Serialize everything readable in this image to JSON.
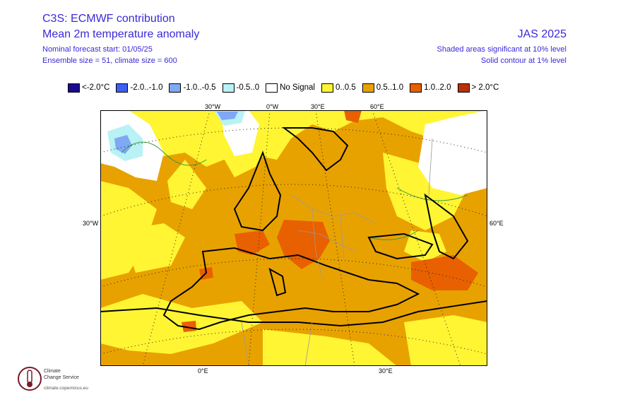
{
  "header": {
    "title": "C3S: ECMWF contribution",
    "subtitle": "Mean 2m temperature anomaly",
    "forecast_start": "Nominal forecast start: 01/05/25",
    "ensemble": "Ensemble size = 51, climate size = 600",
    "season": "JAS 2025",
    "significance_shaded": "Shaded areas significant at 10% level",
    "significance_contour": "Solid contour at 1% level"
  },
  "legend": [
    {
      "label": "<-2.0°C",
      "color": "#1a0a8c"
    },
    {
      "label": "-2.0..-1.0",
      "color": "#3f5ff0"
    },
    {
      "label": "-1.0..-0.5",
      "color": "#7fa8f5"
    },
    {
      "label": "-0.5..0",
      "color": "#b8f2f5"
    },
    {
      "label": "No Signal",
      "color": "#ffffff"
    },
    {
      "label": "0..0.5",
      "color": "#fff533"
    },
    {
      "label": "0.5..1.0",
      "color": "#e8a200"
    },
    {
      "label": "1.0..2.0",
      "color": "#e86000"
    },
    {
      "label": "> 2.0°C",
      "color": "#b8300a"
    }
  ],
  "grid_labels": {
    "top": [
      "30°W",
      "0°W",
      "30°E",
      "60°E"
    ],
    "left": "30°W",
    "right": "60°E",
    "bottom": [
      "0°E",
      "30°E"
    ]
  },
  "logo": {
    "line1": "Climate",
    "line2": "Change Service",
    "url": "climate.copernicus.eu"
  }
}
